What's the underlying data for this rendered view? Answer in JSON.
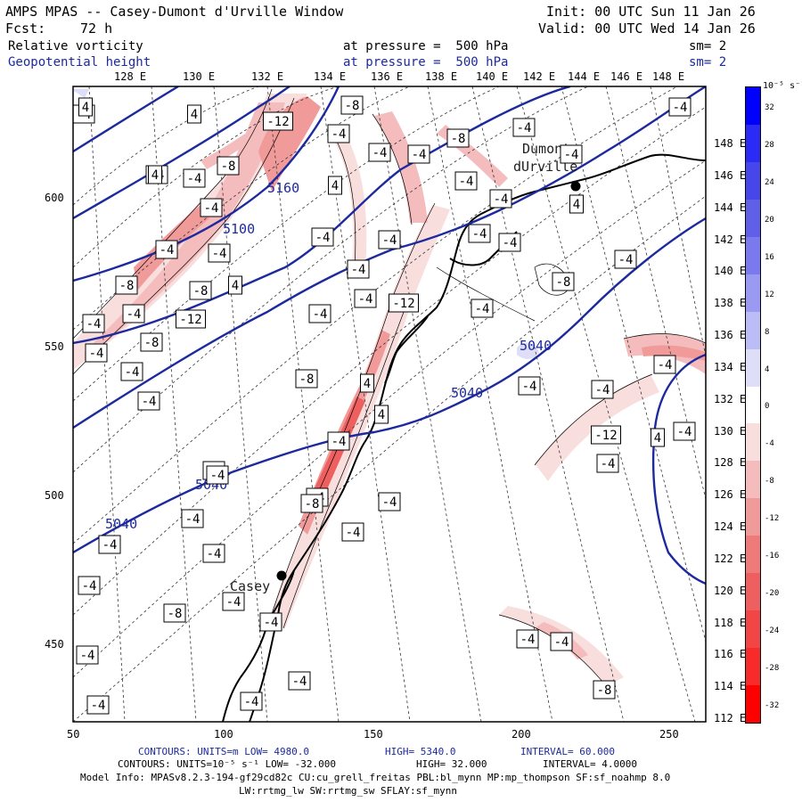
{
  "header": {
    "title": "AMPS MPAS -- Casey-Dumont d'Urville Window",
    "init": "Init: 00 UTC Sun 11 Jan 26",
    "fcst_label": "Fcst:",
    "fcst_value": "72 h",
    "valid": "Valid: 00 UTC Wed 14 Jan 26",
    "field1_name": "Relative vorticity",
    "field1_level": "at pressure =  500 hPa",
    "field1_smooth": "sm= 2",
    "field2_name": "Geopotential height",
    "field2_level": "at pressure =  500 hPa",
    "field2_smooth": "sm= 2"
  },
  "top_lon_labels": [
    "128 E",
    "130 E",
    "132 E",
    "134 E",
    "136 E",
    "138 E",
    "140 E",
    "142 E",
    "144 E",
    "146 E",
    "148 E"
  ],
  "right_lon_labels": [
    "148 E",
    "146 E",
    "144 E",
    "142 E",
    "140 E",
    "138 E",
    "136 E",
    "134 E",
    "132 E",
    "130 E",
    "128 E",
    "126 E",
    "124 E",
    "122 E",
    "120 E",
    "118 E",
    "116 E",
    "114 E",
    "112 E"
  ],
  "x_ticks": [
    "50",
    "100",
    "150",
    "200",
    "250"
  ],
  "y_ticks": [
    "600",
    "550",
    "500",
    "450"
  ],
  "colorbar": {
    "unit_label": "10⁻⁵ s⁻¹",
    "labels": [
      "32",
      "28",
      "24",
      "20",
      "16",
      "12",
      "8",
      "4",
      "0",
      "-4",
      "-8",
      "-12",
      "-16",
      "-20",
      "-24",
      "-28",
      "-32"
    ],
    "colors": [
      "#0000ff",
      "#2b2bf5",
      "#4646ea",
      "#5f5fe8",
      "#7a7aee",
      "#9a9af2",
      "#bcbcf6",
      "#dedef9",
      "#ffffff",
      "#f9dede",
      "#f4bcbc",
      "#f09a9a",
      "#ee7a7a",
      "#ee5f5f",
      "#f24646",
      "#f82b2b",
      "#ff0000"
    ]
  },
  "map": {
    "stations": [
      {
        "name": "Dumont",
        "name2": "dUrville"
      },
      {
        "name": "Casey"
      }
    ],
    "height_labels": [
      "5160",
      "5100",
      "5040",
      "5040",
      "5040",
      "5040"
    ],
    "vort_labels": [
      "-4",
      "4",
      "4",
      "-12",
      "-8",
      "-4",
      "-8",
      "-4",
      "-4",
      "-4",
      "-4",
      "-4",
      "4",
      "-8",
      "-8",
      "-4",
      "-4",
      "-12",
      "-8",
      "-4",
      "-4",
      "-4",
      "4",
      "-4",
      "-4",
      "-4",
      "-4",
      "-4",
      "-12",
      "-8",
      "-4",
      "-4",
      "4",
      "-4",
      "-4",
      "-4",
      "-4",
      "-4",
      "-8",
      "-4",
      "-4",
      "-4",
      "-4",
      "4",
      "-8",
      "4",
      "4",
      "-4",
      "-4",
      "-4",
      "-4",
      "4",
      "-12",
      "-4",
      "-4",
      "-4",
      "-8",
      "-4",
      "-4",
      "-4",
      "-4",
      "-4",
      "-4",
      "-4",
      "-4",
      "-8",
      "-4",
      "-4",
      "-4",
      "-4",
      "-8",
      "-4",
      "-4",
      "-4",
      "-4",
      "4",
      "-4",
      "-4",
      "-4"
    ]
  },
  "footer": {
    "line1_a": "CONTOURS:  UNITS=m  LOW=  4980.0",
    "line1_b": "HIGH=  5340.0",
    "line1_c": "INTERVAL=   60.000",
    "line2_a": "CONTOURS:  UNITS=10⁻⁵ s⁻¹  LOW= -32.000",
    "line2_b": "HIGH=  32.000",
    "line2_c": "INTERVAL=   4.0000",
    "line3": "Model Info: MPASv8.2.3-194-gf29cd82c CU:cu_grell_freitas PBL:bl_mynn MP:mp_thompson SF:sf_noahmp 8.0",
    "line4": "LW:rrtmg_lw SW:rrtmg_sw SFLAY:sf_mynn"
  }
}
